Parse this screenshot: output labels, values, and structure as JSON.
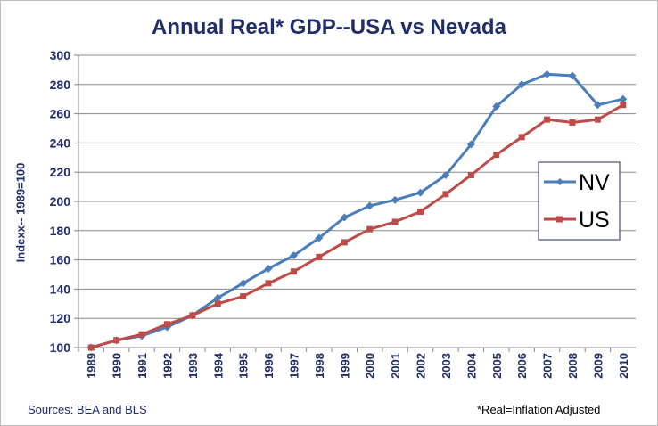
{
  "chart_data": {
    "type": "line",
    "title": "Annual Real* GDP--USA vs Nevada",
    "ylabel": "Indexx-- 1989=100",
    "xlabel": "",
    "ylim": [
      100,
      300
    ],
    "yticks": [
      100,
      120,
      140,
      160,
      180,
      200,
      220,
      240,
      260,
      280,
      300
    ],
    "grid": true,
    "legend": "right",
    "categories": [
      "1989",
      "1990",
      "1991",
      "1992",
      "1993",
      "1994",
      "1995",
      "1996",
      "1997",
      "1998",
      "1999",
      "2000",
      "2001",
      "2002",
      "2003",
      "2004",
      "2005",
      "2006",
      "2007",
      "2008",
      "2009",
      "2010"
    ],
    "series": [
      {
        "name": "NV",
        "color": "#4a7ebb",
        "marker": "diamond",
        "values": [
          100,
          105,
          108,
          114,
          122,
          134,
          144,
          154,
          163,
          175,
          189,
          197,
          201,
          206,
          218,
          239,
          265,
          280,
          287,
          286,
          266,
          270
        ]
      },
      {
        "name": "US",
        "color": "#be4b48",
        "marker": "square",
        "values": [
          100,
          105,
          109,
          116,
          122,
          130,
          135,
          144,
          152,
          162,
          172,
          181,
          186,
          193,
          205,
          218,
          232,
          244,
          256,
          254,
          256,
          266
        ]
      }
    ]
  },
  "footer": {
    "sources": "Sources: BEA and BLS",
    "note": "*Real=Inflation  Adjusted"
  }
}
